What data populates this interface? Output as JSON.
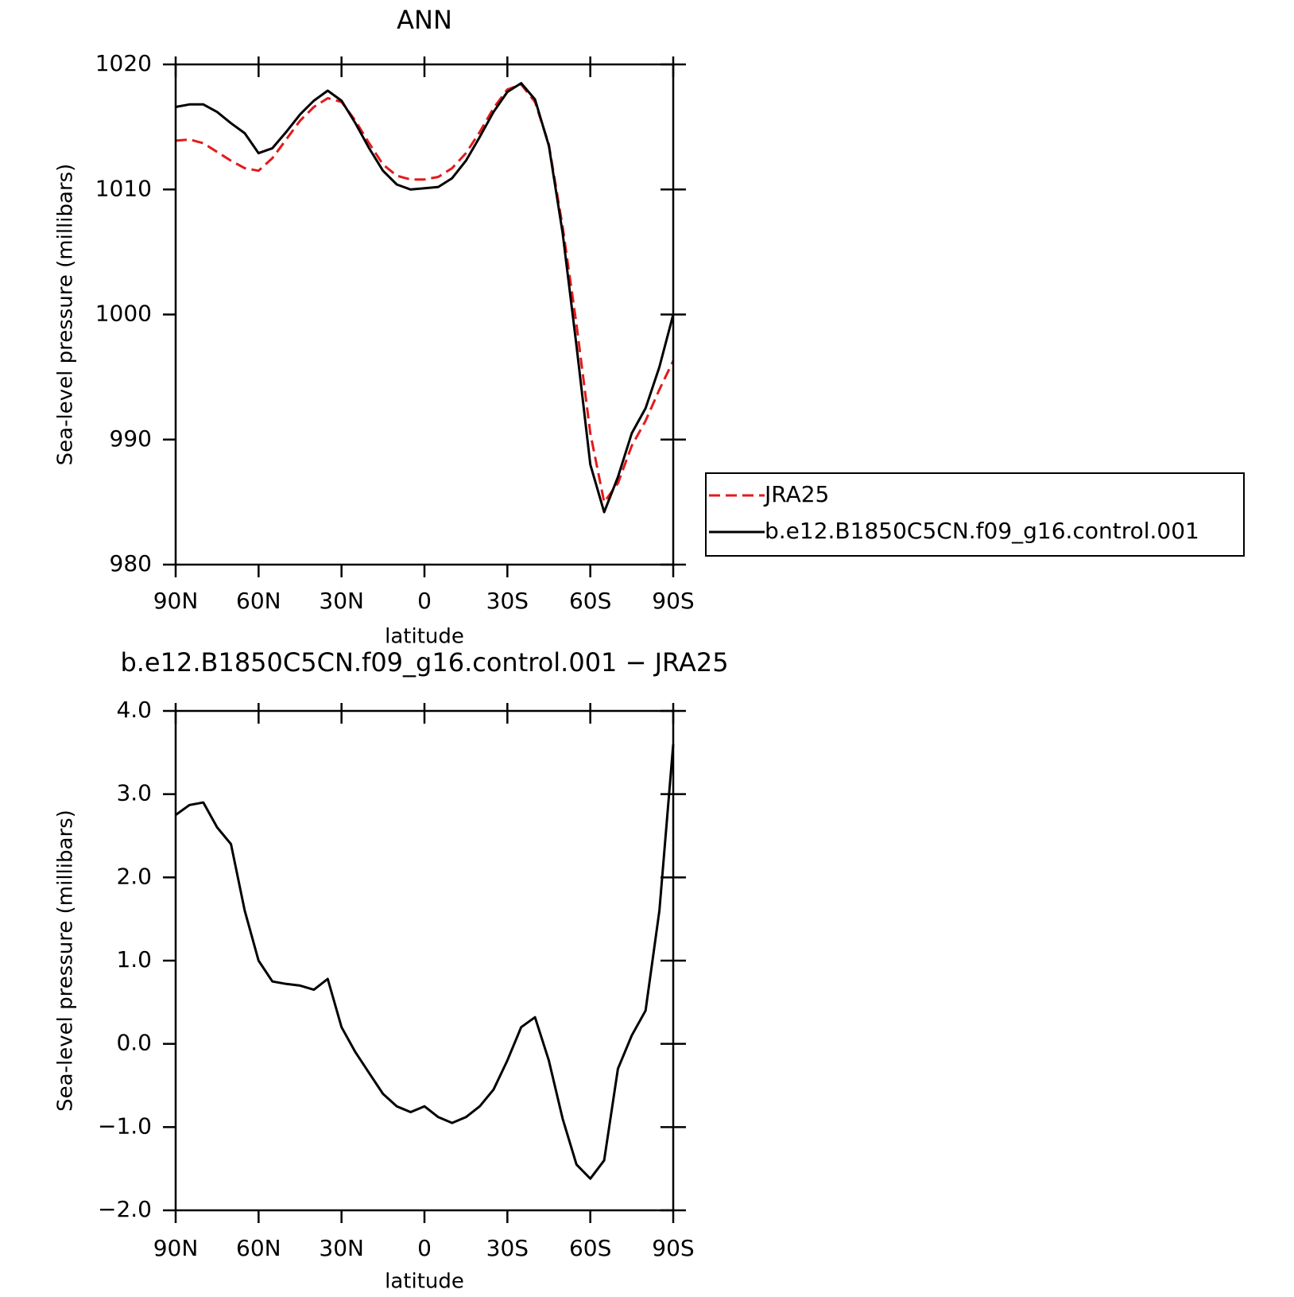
{
  "chart_data": [
    {
      "type": "line",
      "title": "ANN",
      "xlabel": "latitude",
      "ylabel": "Sea-level pressure (millibars)",
      "x": [
        90,
        85,
        80,
        75,
        70,
        65,
        60,
        55,
        50,
        45,
        40,
        35,
        30,
        25,
        20,
        15,
        10,
        5,
        0,
        -5,
        -10,
        -15,
        -20,
        -25,
        -30,
        -35,
        -40,
        -45,
        -50,
        -55,
        -60,
        -65,
        -70,
        -75,
        -80,
        -85,
        -90
      ],
      "series": [
        {
          "name": "JRA25",
          "color": "#e31a1c",
          "dash": true,
          "values": [
            1013.9,
            1014.0,
            1013.7,
            1013.0,
            1012.3,
            1011.7,
            1011.5,
            1012.5,
            1014.0,
            1015.5,
            1016.6,
            1017.3,
            1017.0,
            1015.5,
            1013.7,
            1012.0,
            1011.1,
            1010.8,
            1010.8,
            1011.0,
            1011.7,
            1012.9,
            1014.6,
            1016.5,
            1018.0,
            1018.4,
            1017.0,
            1013.6,
            1007.0,
            999.2,
            990.5,
            985.0,
            986.5,
            989.5,
            991.5,
            994.0,
            996.3
          ]
        },
        {
          "name": "b.e12.B1850C5CN.f09_g16.control.001",
          "color": "#000000",
          "dash": false,
          "values": [
            1016.6,
            1016.8,
            1016.8,
            1016.2,
            1015.3,
            1014.5,
            1012.9,
            1013.3,
            1014.6,
            1016.0,
            1017.1,
            1017.9,
            1017.1,
            1015.3,
            1013.3,
            1011.5,
            1010.4,
            1010.0,
            1010.1,
            1010.2,
            1010.9,
            1012.3,
            1014.2,
            1016.2,
            1017.8,
            1018.5,
            1017.2,
            1013.5,
            1006.5,
            997.5,
            988.0,
            984.2,
            987.0,
            990.5,
            992.5,
            995.8,
            1000.0
          ]
        }
      ],
      "xlim": [
        90,
        -90
      ],
      "xticks": [
        {
          "value": 90,
          "label": "90N"
        },
        {
          "value": 60,
          "label": "60N"
        },
        {
          "value": 30,
          "label": "30N"
        },
        0,
        {
          "value": -30,
          "label": "30S"
        },
        {
          "value": -60,
          "label": "60S"
        },
        {
          "value": -90,
          "label": "90S"
        }
      ],
      "ylim": [
        980,
        1020
      ],
      "yticks": [
        980,
        990,
        1000,
        1010,
        1020
      ],
      "legend": "right"
    },
    {
      "type": "line",
      "title": "b.e12.B1850C5CN.f09_g16.control.001 − JRA25",
      "xlabel": "latitude",
      "ylabel": "Sea-level pressure (millibars)",
      "x": [
        90,
        85,
        80,
        75,
        70,
        65,
        60,
        55,
        50,
        45,
        40,
        35,
        30,
        25,
        20,
        15,
        10,
        5,
        0,
        -5,
        -10,
        -15,
        -20,
        -25,
        -30,
        -35,
        -40,
        -45,
        -50,
        -55,
        -60,
        -65,
        -70,
        -75,
        -80,
        -85,
        -90
      ],
      "series": [
        {
          "color": "#000000",
          "dash": false,
          "values": [
            2.75,
            2.87,
            2.9,
            2.6,
            2.4,
            1.6,
            1.0,
            0.75,
            0.72,
            0.7,
            0.65,
            0.78,
            0.2,
            -0.1,
            -0.35,
            -0.6,
            -0.75,
            -0.82,
            -0.75,
            -0.88,
            -0.95,
            -0.88,
            -0.75,
            -0.55,
            -0.2,
            0.2,
            0.32,
            -0.2,
            -0.9,
            -1.45,
            -1.62,
            -1.4,
            -0.3,
            0.1,
            0.4,
            1.6,
            3.6
          ]
        }
      ],
      "xlim": [
        90,
        -90
      ],
      "xticks": [
        {
          "value": 90,
          "label": "90N"
        },
        {
          "value": 60,
          "label": "60N"
        },
        {
          "value": 30,
          "label": "30N"
        },
        0,
        {
          "value": -30,
          "label": "30S"
        },
        {
          "value": -60,
          "label": "60S"
        },
        {
          "value": -90,
          "label": "90S"
        }
      ],
      "ylim": [
        -2,
        4
      ],
      "yticks": [
        {
          "value": -2,
          "label": "−2.0"
        },
        {
          "value": -1,
          "label": "−1.0"
        },
        {
          "value": 0,
          "label": "0.0"
        },
        {
          "value": 1,
          "label": "1.0"
        },
        {
          "value": 2,
          "label": "2.0"
        },
        {
          "value": 3,
          "label": "3.0"
        },
        {
          "value": 4,
          "label": "4.0"
        }
      ]
    }
  ]
}
